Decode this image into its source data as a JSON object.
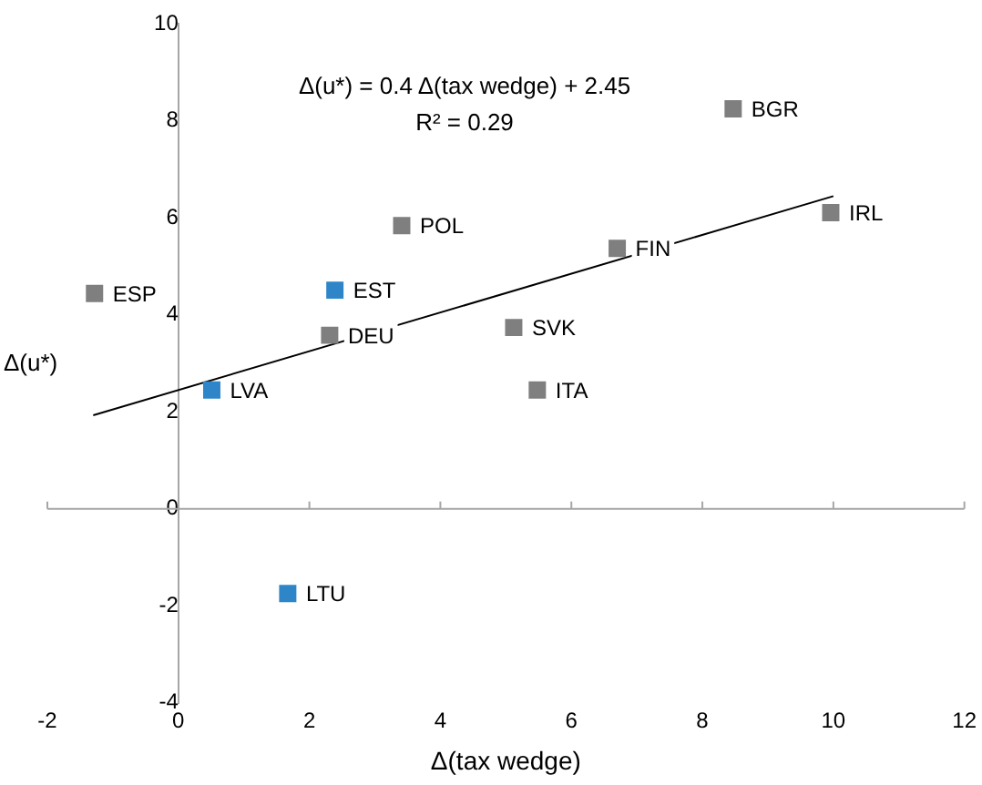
{
  "chart_data": {
    "type": "scatter",
    "xlabel": "Δ(tax wedge)",
    "ylabel": "Δ(u*)",
    "marker": "square",
    "series": [
      {
        "color": "#7f7f7f",
        "x": [
          -1.28,
          3.41,
          2.31,
          5.12,
          5.48,
          6.7,
          8.47,
          9.96
        ],
        "values": [
          4.44,
          5.84,
          3.58,
          3.74,
          2.45,
          5.37,
          8.25,
          6.11
        ]
      },
      {
        "color": "#2e86c8",
        "x": [
          2.39,
          0.51,
          1.67
        ],
        "values": [
          4.51,
          2.45,
          -1.75
        ]
      },
      {
        "type": "line",
        "color": "#000000",
        "marker": "none",
        "line_style": "solid",
        "x": [
          -1.3,
          10
        ],
        "values": [
          1.93,
          6.45
        ]
      }
    ],
    "xlim": [
      -2,
      12
    ],
    "ylim": [
      -4,
      10
    ],
    "xticks": [
      -2,
      0,
      2,
      4,
      6,
      8,
      10,
      12
    ],
    "yticks": [
      -4,
      -2,
      0,
      2,
      4,
      6,
      8,
      10
    ],
    "annotations": [
      "Δ(u*) = 0.4 Δ(tax wedge) + 2.45",
      "R² = 0.29",
      {
        "text": "ESP",
        "x": -1.28,
        "y": 4.44
      },
      {
        "text": "POL",
        "x": 3.41,
        "y": 5.84
      },
      {
        "text": "DEU",
        "x": 2.31,
        "y": 3.58
      },
      {
        "text": "SVK",
        "x": 5.12,
        "y": 3.74
      },
      {
        "text": "ITA",
        "x": 5.48,
        "y": 2.45
      },
      {
        "text": "FIN",
        "x": 6.7,
        "y": 5.37
      },
      {
        "text": "BGR",
        "x": 8.47,
        "y": 8.25
      },
      {
        "text": "IRL",
        "x": 9.96,
        "y": 6.11
      },
      {
        "text": "EST",
        "x": 2.39,
        "y": 4.51
      },
      {
        "text": "LVA",
        "x": 0.51,
        "y": 2.45
      },
      {
        "text": "LTU",
        "x": 1.67,
        "y": -1.75
      }
    ]
  }
}
